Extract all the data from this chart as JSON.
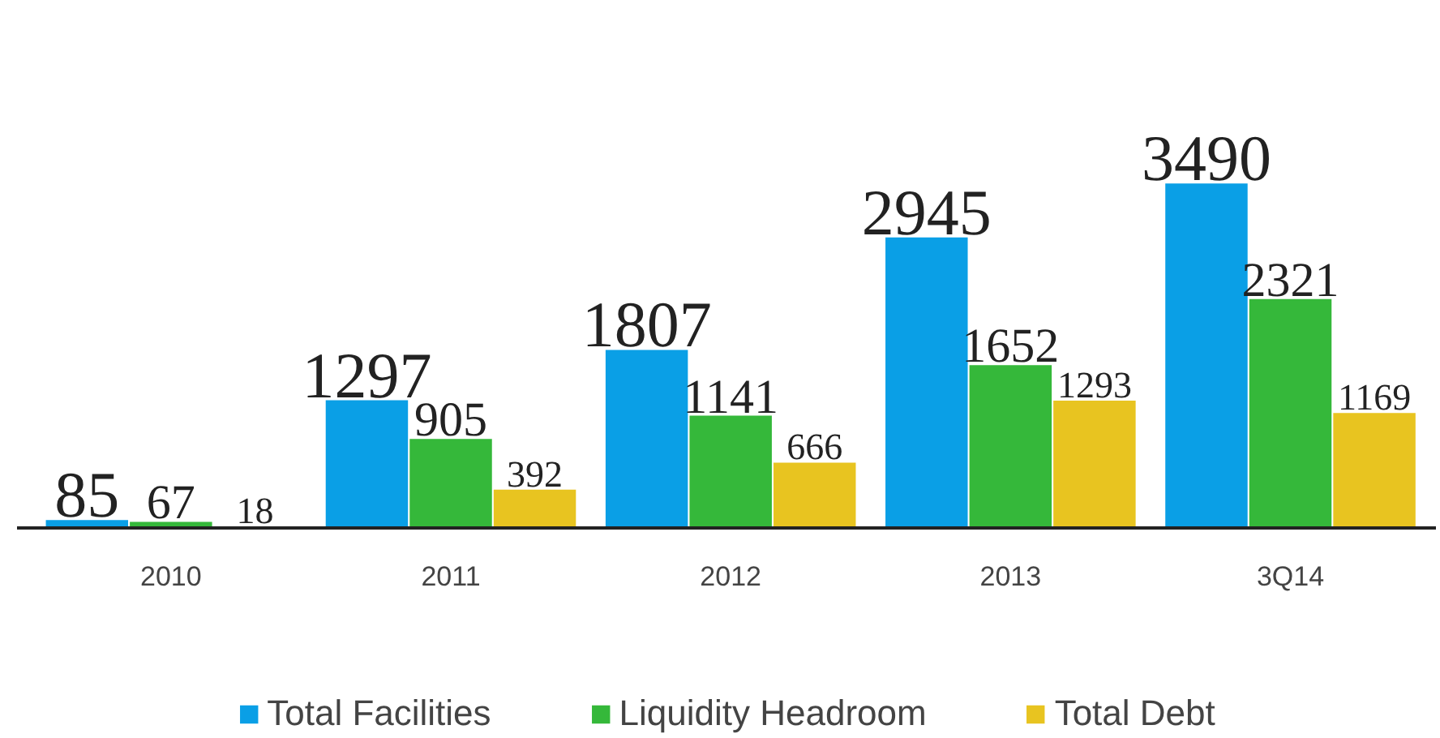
{
  "chart_data": {
    "type": "bar",
    "categories": [
      "2010",
      "2011",
      "2012",
      "2013",
      "3Q14"
    ],
    "series": [
      {
        "name": "Total Facilities",
        "color": "#0a9fe6",
        "values": [
          85,
          1297,
          1807,
          2945,
          3490
        ]
      },
      {
        "name": "Liquidity Headroom",
        "color": "#35b83a",
        "values": [
          67,
          905,
          1141,
          1652,
          2321
        ]
      },
      {
        "name": "Total Debt",
        "color": "#e8c420",
        "values": [
          18,
          392,
          666,
          1293,
          1169
        ]
      }
    ],
    "data_labels": true,
    "legend": "bottom",
    "grid": false
  }
}
